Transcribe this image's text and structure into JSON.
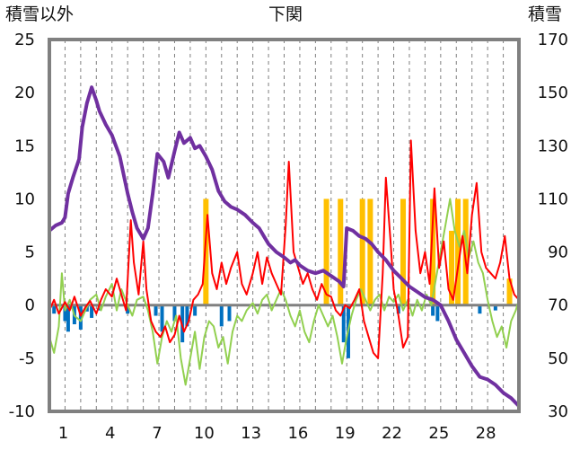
{
  "chart_data": {
    "type": "line",
    "title": "下関",
    "ylabel_left": "積雪以外",
    "ylabel_right": "積雪",
    "y_left_range": [
      -10,
      25
    ],
    "y_left_ticks": [
      "25",
      "20",
      "15",
      "10",
      "5",
      "0",
      "-5",
      "-10"
    ],
    "y_right_range": [
      30,
      170
    ],
    "y_right_ticks": [
      "170",
      "150",
      "130",
      "110",
      "90",
      "70",
      "50",
      "30"
    ],
    "x_range": [
      0,
      30
    ],
    "x_tick_values": [
      1,
      4,
      7,
      10,
      13,
      16,
      19,
      22,
      25,
      28
    ],
    "x_tick_labels": [
      "1",
      "4",
      "7",
      "10",
      "13",
      "16",
      "19",
      "22",
      "25",
      "28"
    ],
    "grid": "vertical-dashed",
    "colors": {
      "snow_depth": "#7030a0",
      "red_series": "#ff0000",
      "green_series": "#92d050",
      "blue_bars": "#0070c0",
      "orange_bars": "#ffc000",
      "frame": "#808080",
      "zero_line": "#808080"
    },
    "snow_depth": [
      [
        0.0,
        98
      ],
      [
        0.4,
        100
      ],
      [
        0.8,
        101
      ],
      [
        1.0,
        103
      ],
      [
        1.2,
        112
      ],
      [
        1.5,
        118
      ],
      [
        1.9,
        125
      ],
      [
        2.1,
        137
      ],
      [
        2.4,
        146
      ],
      [
        2.7,
        152
      ],
      [
        3.0,
        147
      ],
      [
        3.2,
        143
      ],
      [
        3.6,
        138
      ],
      [
        4.0,
        134
      ],
      [
        4.5,
        126
      ],
      [
        5.0,
        112
      ],
      [
        5.3,
        105
      ],
      [
        5.6,
        99
      ],
      [
        6.0,
        95
      ],
      [
        6.3,
        99
      ],
      [
        6.6,
        112
      ],
      [
        6.9,
        127
      ],
      [
        7.3,
        124
      ],
      [
        7.6,
        118
      ],
      [
        8.0,
        128
      ],
      [
        8.3,
        135
      ],
      [
        8.6,
        131
      ],
      [
        9.0,
        133
      ],
      [
        9.3,
        129
      ],
      [
        9.6,
        130
      ],
      [
        10.0,
        126
      ],
      [
        10.4,
        121
      ],
      [
        10.8,
        113
      ],
      [
        11.2,
        109
      ],
      [
        11.6,
        107
      ],
      [
        12.0,
        106
      ],
      [
        12.5,
        104
      ],
      [
        13.0,
        101
      ],
      [
        13.4,
        99
      ],
      [
        13.7,
        96
      ],
      [
        14.0,
        93
      ],
      [
        14.5,
        90
      ],
      [
        15.0,
        88
      ],
      [
        15.4,
        86
      ],
      [
        15.7,
        87
      ],
      [
        16.0,
        85
      ],
      [
        16.5,
        83
      ],
      [
        17.0,
        82
      ],
      [
        17.5,
        83
      ],
      [
        18.0,
        81
      ],
      [
        18.5,
        79
      ],
      [
        18.8,
        77
      ],
      [
        19.0,
        99
      ],
      [
        19.4,
        98
      ],
      [
        19.8,
        96
      ],
      [
        20.2,
        95
      ],
      [
        20.6,
        93
      ],
      [
        21.0,
        90
      ],
      [
        21.5,
        87
      ],
      [
        22.0,
        83
      ],
      [
        22.5,
        80
      ],
      [
        23.0,
        77
      ],
      [
        23.5,
        75
      ],
      [
        24.0,
        73
      ],
      [
        24.5,
        72
      ],
      [
        25.0,
        70
      ],
      [
        25.5,
        64
      ],
      [
        26.0,
        57
      ],
      [
        26.5,
        52
      ],
      [
        27.0,
        47
      ],
      [
        27.5,
        43
      ],
      [
        28.0,
        42
      ],
      [
        28.5,
        40
      ],
      [
        29.0,
        37
      ],
      [
        29.5,
        35
      ],
      [
        30.0,
        32
      ]
    ],
    "red_series": [
      [
        0.0,
        -0.5
      ],
      [
        0.3,
        0.5
      ],
      [
        0.6,
        -0.8
      ],
      [
        1.0,
        0.3
      ],
      [
        1.3,
        -0.5
      ],
      [
        1.6,
        0.8
      ],
      [
        2.0,
        -1.0
      ],
      [
        2.3,
        -0.2
      ],
      [
        2.6,
        0.4
      ],
      [
        3.0,
        -0.8
      ],
      [
        3.3,
        0.5
      ],
      [
        3.6,
        1.5
      ],
      [
        4.0,
        0.8
      ],
      [
        4.3,
        2.5
      ],
      [
        4.6,
        1.0
      ],
      [
        4.9,
        -0.5
      ],
      [
        5.2,
        8.0
      ],
      [
        5.4,
        4.0
      ],
      [
        5.7,
        1.0
      ],
      [
        6.0,
        6.0
      ],
      [
        6.2,
        1.5
      ],
      [
        6.5,
        -1.5
      ],
      [
        6.8,
        -2.5
      ],
      [
        7.1,
        -3.0
      ],
      [
        7.4,
        -2.0
      ],
      [
        7.7,
        -3.5
      ],
      [
        8.0,
        -2.8
      ],
      [
        8.3,
        -1.0
      ],
      [
        8.6,
        -2.5
      ],
      [
        8.9,
        -1.5
      ],
      [
        9.2,
        0.5
      ],
      [
        9.5,
        1.0
      ],
      [
        9.8,
        2.0
      ],
      [
        10.1,
        8.5
      ],
      [
        10.4,
        3.0
      ],
      [
        10.7,
        1.5
      ],
      [
        11.0,
        4.0
      ],
      [
        11.3,
        2.0
      ],
      [
        11.6,
        3.5
      ],
      [
        12.0,
        5.0
      ],
      [
        12.3,
        2.0
      ],
      [
        12.6,
        1.0
      ],
      [
        13.0,
        3.0
      ],
      [
        13.3,
        5.0
      ],
      [
        13.6,
        2.0
      ],
      [
        13.9,
        4.5
      ],
      [
        14.2,
        3.0
      ],
      [
        14.5,
        2.0
      ],
      [
        14.8,
        1.0
      ],
      [
        15.1,
        7.5
      ],
      [
        15.3,
        13.5
      ],
      [
        15.6,
        5.0
      ],
      [
        15.9,
        3.5
      ],
      [
        16.2,
        2.0
      ],
      [
        16.5,
        3.0
      ],
      [
        16.8,
        1.5
      ],
      [
        17.1,
        0.5
      ],
      [
        17.4,
        2.0
      ],
      [
        17.7,
        1.0
      ],
      [
        18.0,
        0.8
      ],
      [
        18.3,
        -0.5
      ],
      [
        18.6,
        -1.0
      ],
      [
        18.9,
        0.0
      ],
      [
        19.2,
        -0.3
      ],
      [
        19.5,
        0.5
      ],
      [
        19.8,
        1.5
      ],
      [
        20.1,
        -1.5
      ],
      [
        20.4,
        -3.0
      ],
      [
        20.7,
        -4.5
      ],
      [
        21.0,
        -5.0
      ],
      [
        21.3,
        3.0
      ],
      [
        21.5,
        12.0
      ],
      [
        21.8,
        6.0
      ],
      [
        22.0,
        1.5
      ],
      [
        22.3,
        -1.0
      ],
      [
        22.6,
        -4.0
      ],
      [
        22.9,
        -3.0
      ],
      [
        23.1,
        15.5
      ],
      [
        23.4,
        7.0
      ],
      [
        23.7,
        3.0
      ],
      [
        24.0,
        5.0
      ],
      [
        24.3,
        2.0
      ],
      [
        24.6,
        11.0
      ],
      [
        24.9,
        3.5
      ],
      [
        25.2,
        6.0
      ],
      [
        25.5,
        1.5
      ],
      [
        25.8,
        0.5
      ],
      [
        26.1,
        3.5
      ],
      [
        26.4,
        6.5
      ],
      [
        26.7,
        3.0
      ],
      [
        27.0,
        8.5
      ],
      [
        27.3,
        11.5
      ],
      [
        27.6,
        5.0
      ],
      [
        27.9,
        3.5
      ],
      [
        28.2,
        3.0
      ],
      [
        28.5,
        2.5
      ],
      [
        28.8,
        4.0
      ],
      [
        29.1,
        6.5
      ],
      [
        29.4,
        2.5
      ],
      [
        29.7,
        1.0
      ],
      [
        30.0,
        0.5
      ]
    ],
    "green_series": [
      [
        0.0,
        -3.0
      ],
      [
        0.3,
        -4.5
      ],
      [
        0.6,
        -2.0
      ],
      [
        0.8,
        3.0
      ],
      [
        1.0,
        -0.5
      ],
      [
        1.3,
        0.5
      ],
      [
        1.6,
        -1.0
      ],
      [
        2.0,
        -1.5
      ],
      [
        2.3,
        -0.5
      ],
      [
        2.6,
        0.5
      ],
      [
        3.0,
        1.0
      ],
      [
        3.3,
        -0.5
      ],
      [
        3.6,
        0.8
      ],
      [
        4.0,
        2.0
      ],
      [
        4.3,
        -0.5
      ],
      [
        4.6,
        1.5
      ],
      [
        5.0,
        0.0
      ],
      [
        5.3,
        -1.0
      ],
      [
        5.6,
        0.5
      ],
      [
        6.0,
        0.8
      ],
      [
        6.3,
        -0.5
      ],
      [
        6.6,
        -2.5
      ],
      [
        6.9,
        -5.5
      ],
      [
        7.2,
        -3.0
      ],
      [
        7.5,
        -1.5
      ],
      [
        7.8,
        -2.5
      ],
      [
        8.1,
        -1.0
      ],
      [
        8.4,
        -5.0
      ],
      [
        8.7,
        -7.5
      ],
      [
        9.0,
        -5.0
      ],
      [
        9.3,
        -2.5
      ],
      [
        9.6,
        -6.0
      ],
      [
        9.9,
        -3.0
      ],
      [
        10.2,
        -1.5
      ],
      [
        10.5,
        -2.0
      ],
      [
        10.8,
        -4.0
      ],
      [
        11.1,
        -3.0
      ],
      [
        11.4,
        -5.5
      ],
      [
        11.7,
        -2.5
      ],
      [
        12.0,
        -1.0
      ],
      [
        12.3,
        -1.5
      ],
      [
        12.6,
        -0.5
      ],
      [
        13.0,
        0.2
      ],
      [
        13.3,
        -0.8
      ],
      [
        13.6,
        0.5
      ],
      [
        13.9,
        1.0
      ],
      [
        14.2,
        -0.5
      ],
      [
        14.5,
        0.5
      ],
      [
        14.8,
        1.5
      ],
      [
        15.1,
        0.5
      ],
      [
        15.4,
        -1.0
      ],
      [
        15.7,
        -2.0
      ],
      [
        16.0,
        -0.5
      ],
      [
        16.3,
        -2.5
      ],
      [
        16.6,
        -3.5
      ],
      [
        16.9,
        -1.5
      ],
      [
        17.2,
        0.0
      ],
      [
        17.5,
        -1.0
      ],
      [
        17.8,
        -2.0
      ],
      [
        18.1,
        -1.0
      ],
      [
        18.4,
        -3.0
      ],
      [
        18.7,
        -5.5
      ],
      [
        19.0,
        -3.0
      ],
      [
        19.3,
        -1.0
      ],
      [
        19.6,
        0.5
      ],
      [
        19.9,
        1.5
      ],
      [
        20.2,
        0.5
      ],
      [
        20.5,
        -0.5
      ],
      [
        20.8,
        0.5
      ],
      [
        21.1,
        1.0
      ],
      [
        21.4,
        -0.5
      ],
      [
        21.7,
        0.8
      ],
      [
        22.0,
        0.3
      ],
      [
        22.3,
        1.0
      ],
      [
        22.6,
        -0.5
      ],
      [
        22.9,
        0.5
      ],
      [
        23.2,
        -1.0
      ],
      [
        23.5,
        0.5
      ],
      [
        23.8,
        -0.5
      ],
      [
        24.1,
        1.0
      ],
      [
        24.4,
        0.0
      ],
      [
        24.7,
        2.5
      ],
      [
        25.0,
        5.0
      ],
      [
        25.3,
        7.5
      ],
      [
        25.6,
        10.0
      ],
      [
        25.9,
        7.0
      ],
      [
        26.2,
        5.5
      ],
      [
        26.5,
        7.0
      ],
      [
        26.8,
        4.5
      ],
      [
        27.1,
        6.0
      ],
      [
        27.4,
        4.0
      ],
      [
        27.7,
        3.0
      ],
      [
        28.0,
        0.5
      ],
      [
        28.3,
        -1.5
      ],
      [
        28.6,
        -3.0
      ],
      [
        28.9,
        -2.0
      ],
      [
        29.2,
        -4.0
      ],
      [
        29.5,
        -1.5
      ],
      [
        29.8,
        -0.5
      ],
      [
        30.0,
        0.5
      ]
    ],
    "blue_bars": [
      [
        0.3,
        -0.8
      ],
      [
        1.0,
        -1.5
      ],
      [
        1.2,
        -2.5
      ],
      [
        1.6,
        -1.8
      ],
      [
        2.0,
        -2.3
      ],
      [
        2.4,
        -0.6
      ],
      [
        2.7,
        -1.2
      ],
      [
        3.2,
        -0.5
      ],
      [
        5.0,
        -0.8
      ],
      [
        6.8,
        -1.0
      ],
      [
        7.2,
        -2.5
      ],
      [
        8.0,
        -1.5
      ],
      [
        8.5,
        -3.5
      ],
      [
        8.8,
        -2.0
      ],
      [
        9.3,
        -1.0
      ],
      [
        11.0,
        -2.0
      ],
      [
        11.5,
        -1.5
      ],
      [
        18.8,
        -3.5
      ],
      [
        19.1,
        -5.0
      ],
      [
        22.3,
        -0.8
      ],
      [
        24.5,
        -1.0
      ],
      [
        24.8,
        -1.5
      ],
      [
        27.5,
        -0.8
      ],
      [
        28.5,
        -0.5
      ]
    ],
    "orange_bars": [
      [
        10.0,
        10.0
      ],
      [
        17.7,
        10.0
      ],
      [
        18.6,
        10.0
      ],
      [
        20.0,
        10.0
      ],
      [
        20.5,
        10.0
      ],
      [
        22.6,
        10.0
      ],
      [
        24.5,
        10.0
      ],
      [
        25.7,
        7.0
      ],
      [
        26.1,
        10.0
      ],
      [
        26.6,
        10.0
      ],
      [
        29.4,
        2.5
      ]
    ]
  }
}
